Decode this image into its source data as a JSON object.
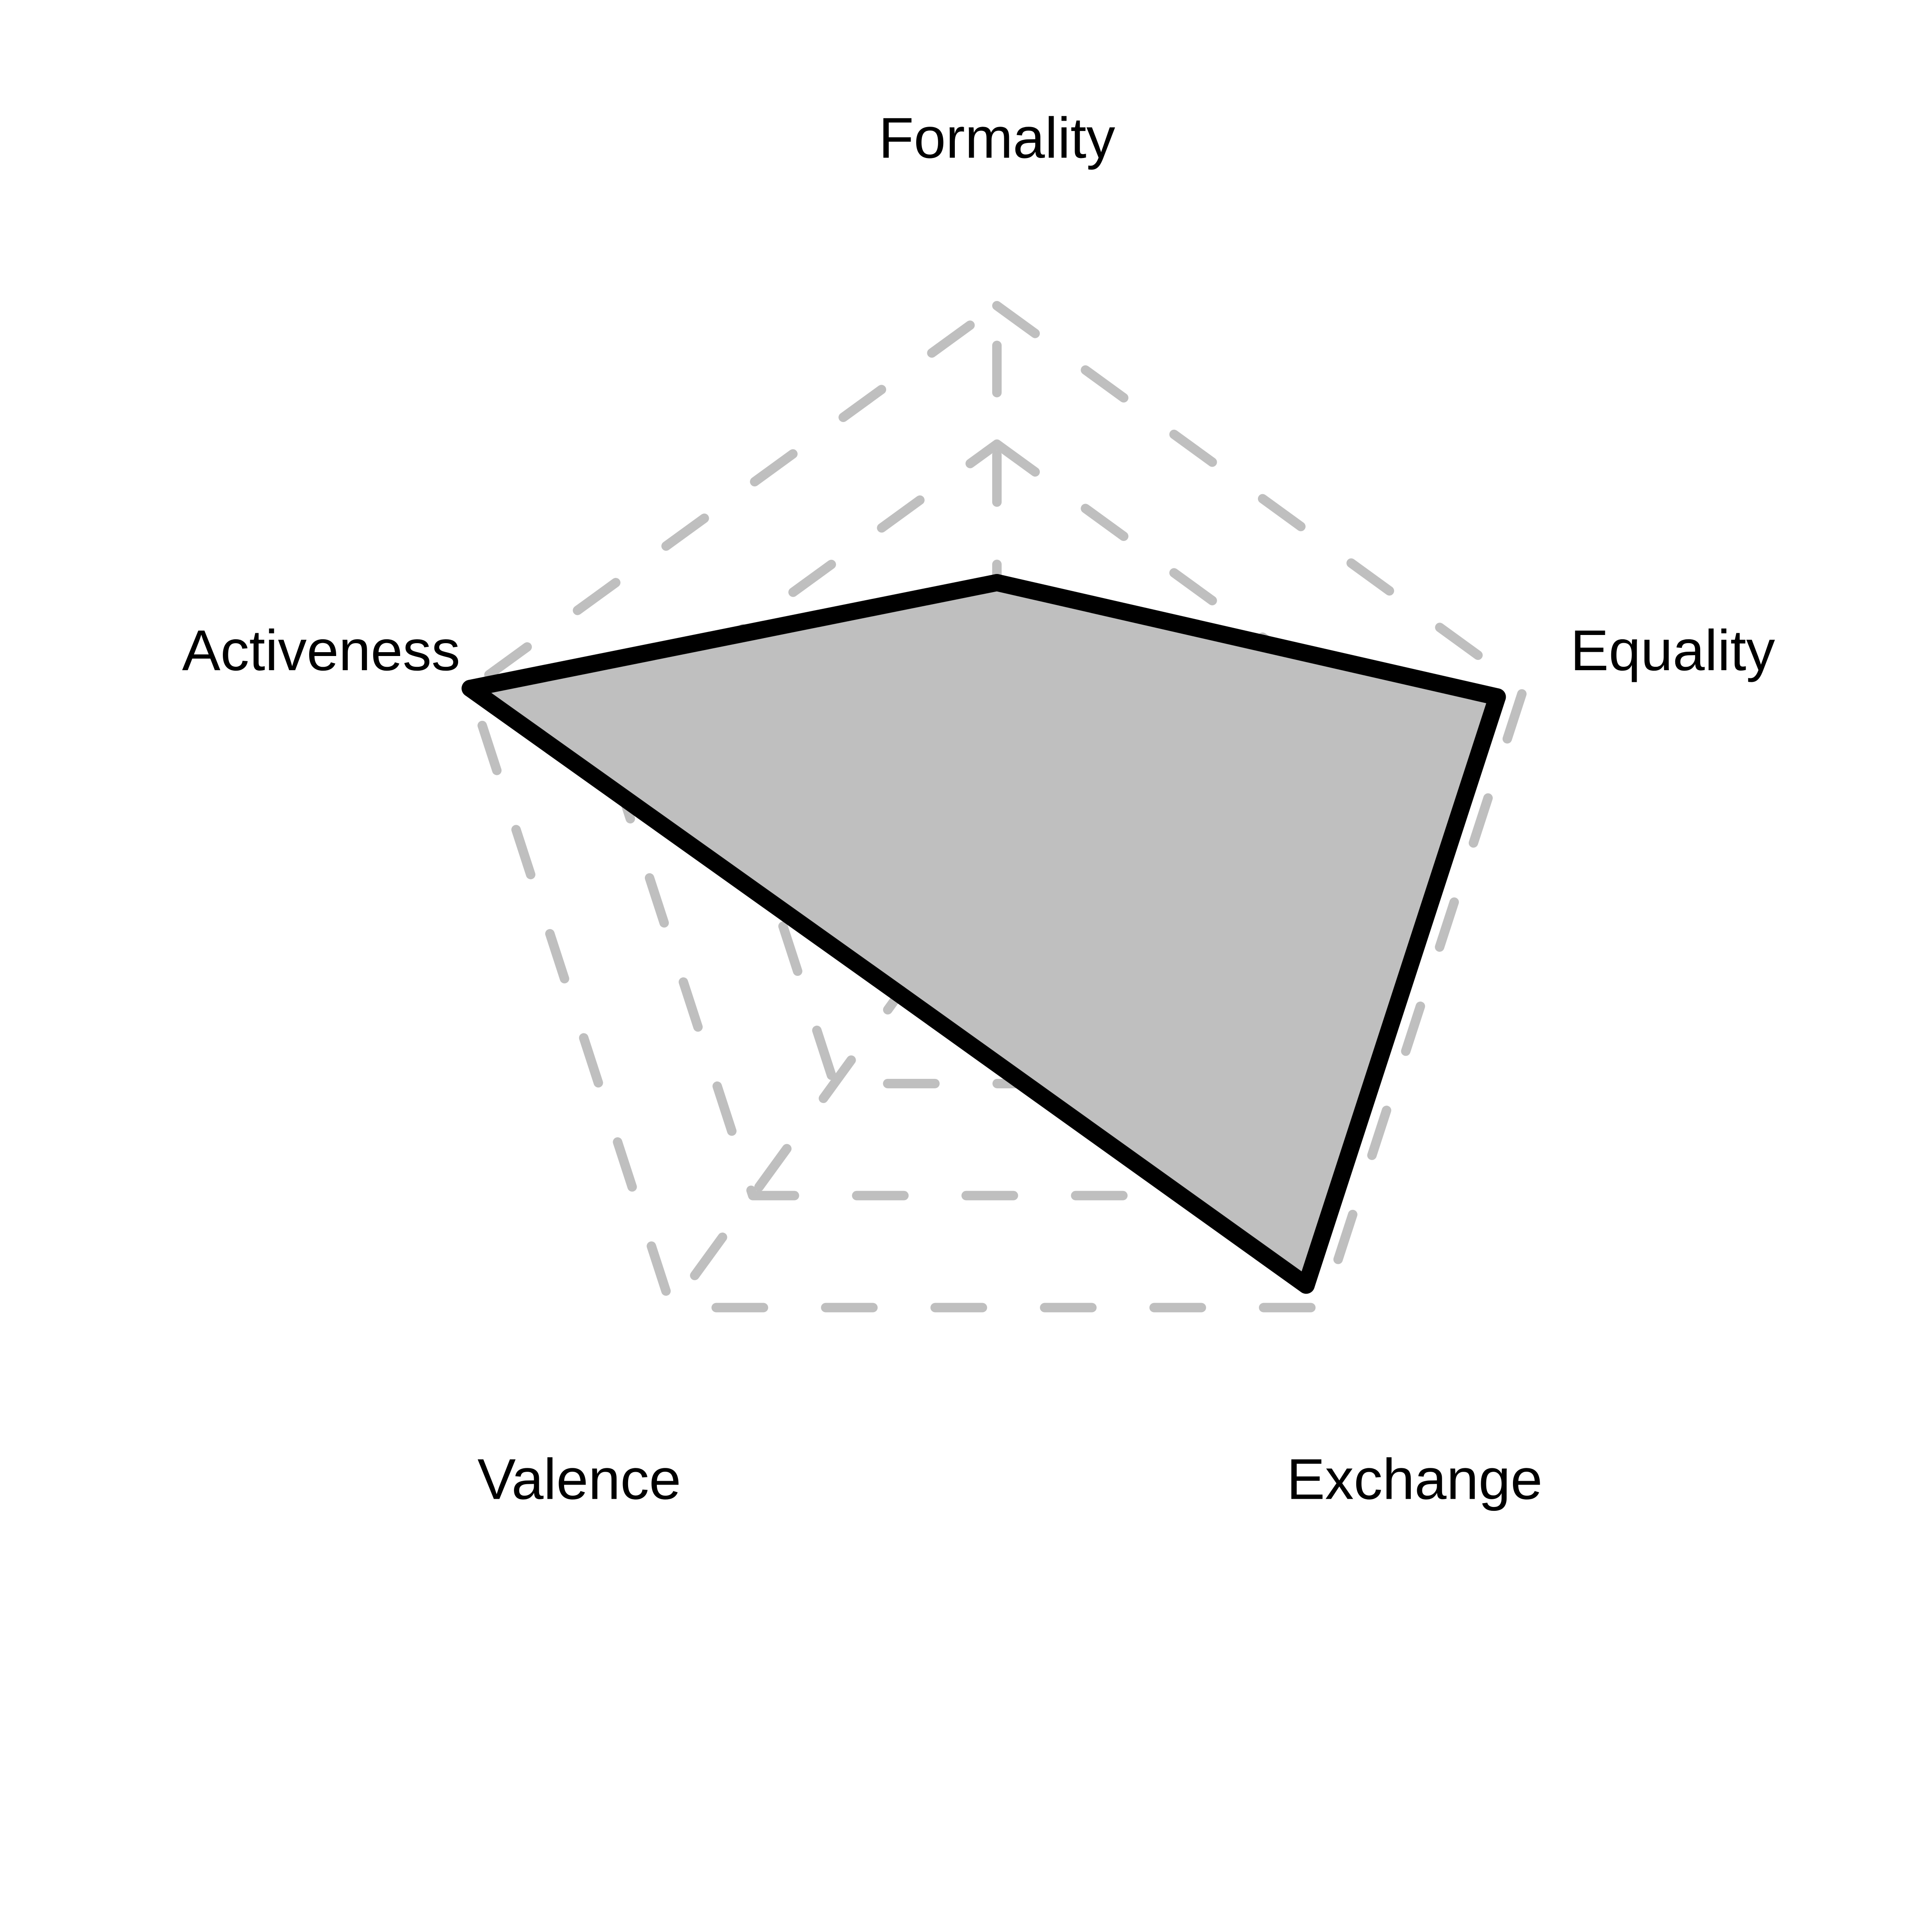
{
  "chart_data": {
    "type": "radar",
    "axes": [
      "Formality",
      "Equality",
      "Exchange",
      "Valence",
      "Activeness"
    ],
    "series": [
      {
        "values": [
          2.0,
          3.8,
          3.8,
          1.2,
          4.0
        ]
      }
    ],
    "range": [
      0,
      4
    ],
    "grid_levels": [
      1,
      2,
      3,
      4
    ],
    "grid": true,
    "colors": {
      "grid": "#bfbfbf",
      "fill": "#bfbfbf",
      "stroke": "#000000",
      "text": "#000000"
    }
  }
}
